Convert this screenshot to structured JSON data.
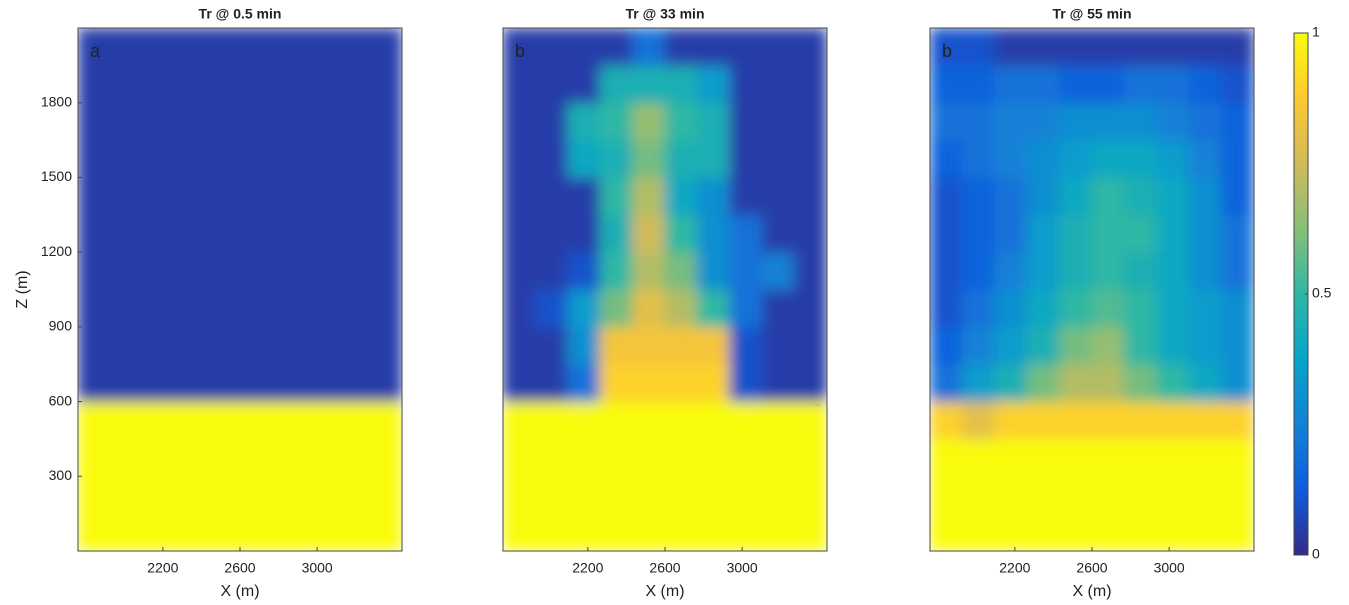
{
  "chart_data": [
    {
      "type": "heatmap",
      "title": "Tr @ 0.5 min",
      "letter": "a",
      "xlabel": "X (m)",
      "ylabel": "Z (m)",
      "xlim": [
        1760,
        3440
      ],
      "ylim": [
        0,
        2100
      ],
      "xticks": [
        2200,
        2600,
        3000
      ],
      "yticks": [
        300,
        600,
        900,
        1200,
        1500,
        1800
      ],
      "x": [
        1844,
        2012,
        2180,
        2348,
        2516,
        2684,
        2852,
        3020,
        3188,
        3356
      ],
      "y": [
        75,
        225,
        375,
        525,
        675,
        825,
        975,
        1125,
        1275,
        1425,
        1575,
        1725,
        1875,
        2025
      ],
      "z": [
        [
          1,
          1,
          1,
          1,
          1,
          1,
          1,
          1,
          1,
          1
        ],
        [
          1,
          1,
          1,
          1,
          1,
          1,
          1,
          1,
          1,
          1
        ],
        [
          1,
          1,
          1,
          1,
          1,
          1,
          1,
          1,
          1,
          1
        ],
        [
          1,
          1,
          1,
          1,
          1,
          1,
          1,
          1,
          1,
          1
        ],
        [
          0.05,
          0.05,
          0.05,
          0.05,
          0.05,
          0.05,
          0.05,
          0.05,
          0.05,
          0.05
        ],
        [
          0.05,
          0.05,
          0.05,
          0.05,
          0.05,
          0.05,
          0.05,
          0.05,
          0.05,
          0.05
        ],
        [
          0.05,
          0.05,
          0.05,
          0.05,
          0.05,
          0.05,
          0.05,
          0.05,
          0.05,
          0.05
        ],
        [
          0.05,
          0.05,
          0.05,
          0.05,
          0.05,
          0.05,
          0.05,
          0.05,
          0.05,
          0.05
        ],
        [
          0.05,
          0.05,
          0.05,
          0.05,
          0.05,
          0.05,
          0.05,
          0.05,
          0.05,
          0.05
        ],
        [
          0.05,
          0.05,
          0.05,
          0.05,
          0.05,
          0.05,
          0.05,
          0.05,
          0.05,
          0.05
        ],
        [
          0.05,
          0.05,
          0.05,
          0.05,
          0.05,
          0.05,
          0.05,
          0.05,
          0.05,
          0.05
        ],
        [
          0.05,
          0.05,
          0.05,
          0.05,
          0.05,
          0.05,
          0.05,
          0.05,
          0.05,
          0.05
        ],
        [
          0.05,
          0.05,
          0.05,
          0.05,
          0.05,
          0.05,
          0.05,
          0.05,
          0.05,
          0.05
        ],
        [
          0.05,
          0.05,
          0.05,
          0.05,
          0.05,
          0.05,
          0.05,
          0.05,
          0.05,
          0.05
        ]
      ]
    },
    {
      "type": "heatmap",
      "title": "Tr @ 33 min",
      "letter": "b",
      "xlabel": "X (m)",
      "xlim": [
        1760,
        3440
      ],
      "ylim": [
        0,
        2100
      ],
      "xticks": [
        2200,
        2600,
        3000
      ],
      "x": [
        1844,
        2012,
        2180,
        2348,
        2516,
        2684,
        2852,
        3020,
        3188,
        3356
      ],
      "y": [
        75,
        225,
        375,
        525,
        675,
        825,
        975,
        1125,
        1275,
        1425,
        1575,
        1725,
        1875,
        2025
      ],
      "z": [
        [
          1,
          1,
          1,
          1,
          1,
          1,
          1,
          1,
          1,
          1
        ],
        [
          1,
          1,
          1,
          1,
          1,
          1,
          1,
          1,
          1,
          1
        ],
        [
          1,
          1,
          1,
          1,
          1,
          1,
          1,
          1,
          1,
          1
        ],
        [
          1,
          1,
          1,
          1,
          1,
          1,
          1,
          1,
          1,
          1
        ],
        [
          0.05,
          0.05,
          0.2,
          0.9,
          0.9,
          0.9,
          0.9,
          0.1,
          0.05,
          0.05
        ],
        [
          0.05,
          0.05,
          0.3,
          0.85,
          0.85,
          0.85,
          0.85,
          0.1,
          0.05,
          0.05
        ],
        [
          0.05,
          0.1,
          0.35,
          0.6,
          0.8,
          0.7,
          0.5,
          0.2,
          0.05,
          0.05
        ],
        [
          0.05,
          0.05,
          0.1,
          0.5,
          0.7,
          0.6,
          0.3,
          0.2,
          0.25,
          0.05
        ],
        [
          0.05,
          0.05,
          0.05,
          0.45,
          0.75,
          0.5,
          0.3,
          0.2,
          0.05,
          0.05
        ],
        [
          0.05,
          0.05,
          0.05,
          0.5,
          0.7,
          0.4,
          0.3,
          0.05,
          0.05,
          0.05
        ],
        [
          0.05,
          0.05,
          0.4,
          0.45,
          0.6,
          0.45,
          0.45,
          0.05,
          0.05,
          0.05
        ],
        [
          0.05,
          0.05,
          0.45,
          0.5,
          0.65,
          0.5,
          0.45,
          0.05,
          0.05,
          0.05
        ],
        [
          0.05,
          0.05,
          0.05,
          0.45,
          0.45,
          0.45,
          0.35,
          0.05,
          0.05,
          0.05
        ],
        [
          0.05,
          0.05,
          0.05,
          0.05,
          0.2,
          0.05,
          0.05,
          0.05,
          0.05,
          0.05
        ]
      ]
    },
    {
      "type": "heatmap",
      "title": "Tr @ 55 min",
      "letter": "b",
      "xlabel": "X (m)",
      "xlim": [
        1760,
        3440
      ],
      "ylim": [
        0,
        2100
      ],
      "xticks": [
        2200,
        2600,
        3000
      ],
      "x": [
        1844,
        2012,
        2180,
        2348,
        2516,
        2684,
        2852,
        3020,
        3188,
        3356
      ],
      "y": [
        75,
        225,
        375,
        525,
        675,
        825,
        975,
        1125,
        1275,
        1425,
        1575,
        1725,
        1875,
        2025
      ],
      "z": [
        [
          1,
          1,
          1,
          1,
          1,
          1,
          1,
          1,
          1,
          1
        ],
        [
          1,
          1,
          1,
          1,
          1,
          1,
          1,
          1,
          1,
          1
        ],
        [
          1,
          1,
          1,
          1,
          1,
          1,
          1,
          1,
          1,
          1
        ],
        [
          0.9,
          0.8,
          0.9,
          0.9,
          0.9,
          0.9,
          0.9,
          0.9,
          0.9,
          0.9
        ],
        [
          0.2,
          0.35,
          0.45,
          0.6,
          0.7,
          0.7,
          0.6,
          0.5,
          0.4,
          0.3
        ],
        [
          0.15,
          0.25,
          0.35,
          0.45,
          0.6,
          0.65,
          0.5,
          0.4,
          0.35,
          0.3
        ],
        [
          0.1,
          0.2,
          0.3,
          0.4,
          0.5,
          0.55,
          0.5,
          0.4,
          0.35,
          0.3
        ],
        [
          0.1,
          0.15,
          0.25,
          0.35,
          0.45,
          0.5,
          0.45,
          0.4,
          0.3,
          0.2
        ],
        [
          0.1,
          0.15,
          0.2,
          0.35,
          0.45,
          0.5,
          0.5,
          0.4,
          0.3,
          0.2
        ],
        [
          0.1,
          0.15,
          0.2,
          0.3,
          0.4,
          0.5,
          0.45,
          0.4,
          0.3,
          0.15
        ],
        [
          0.15,
          0.2,
          0.25,
          0.3,
          0.35,
          0.4,
          0.4,
          0.35,
          0.25,
          0.15
        ],
        [
          0.2,
          0.2,
          0.25,
          0.25,
          0.3,
          0.3,
          0.3,
          0.25,
          0.2,
          0.15
        ],
        [
          0.15,
          0.15,
          0.2,
          0.2,
          0.15,
          0.15,
          0.2,
          0.2,
          0.15,
          0.1
        ],
        [
          0.1,
          0.1,
          0.05,
          0.05,
          0.05,
          0.05,
          0.05,
          0.05,
          0.05,
          0.05
        ]
      ]
    }
  ],
  "colorbar": {
    "lim": [
      0,
      1
    ],
    "ticks": [
      0,
      0.5,
      1
    ],
    "colormap": [
      "#352a87",
      "#0f5cdd",
      "#1481d6",
      "#06a4ca",
      "#2eb7a4",
      "#87bf77",
      "#d1bb59",
      "#fec832",
      "#f9fb0e"
    ]
  }
}
